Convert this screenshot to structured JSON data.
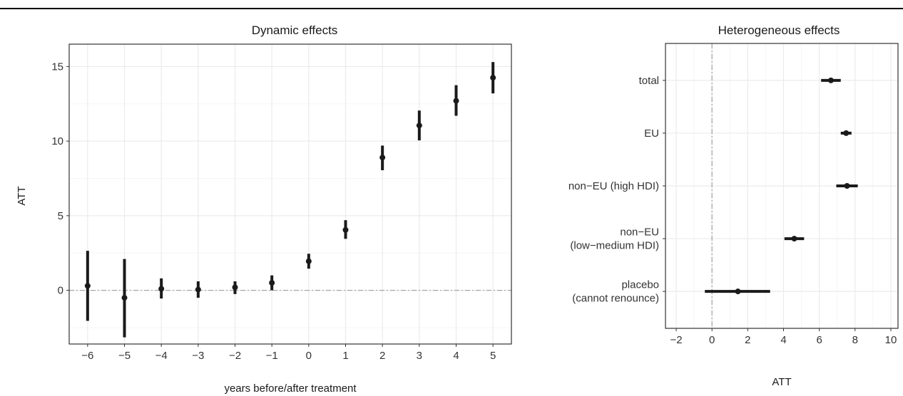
{
  "chart_data": [
    {
      "type": "scatter",
      "title": "Dynamic effects",
      "xlabel": "years before/after treatment",
      "ylabel": "ATT",
      "x": [
        -6,
        -5,
        -4,
        -3,
        -2,
        -1,
        0,
        1,
        2,
        3,
        4,
        5
      ],
      "x_tick_labels": [
        "−6",
        "−5",
        "−4",
        "−3",
        "−2",
        "−1",
        "0",
        "1",
        "2",
        "3",
        "4",
        "5"
      ],
      "xlim": [
        -6.5,
        5.5
      ],
      "ylim": [
        -3.6,
        16.5
      ],
      "y_ticks": [
        0,
        5,
        10,
        15
      ],
      "y_tick_labels": [
        "0",
        "5",
        "10",
        "15"
      ],
      "series": [
        {
          "values": [
            0.3,
            -0.5,
            0.1,
            0.05,
            0.2,
            0.5,
            1.95,
            4.05,
            8.9,
            11.05,
            12.7,
            14.25
          ],
          "ci_low": [
            -2.05,
            -3.15,
            -0.55,
            -0.5,
            -0.25,
            0.0,
            1.45,
            3.45,
            8.05,
            10.05,
            11.7,
            13.2
          ],
          "ci_high": [
            2.65,
            2.1,
            0.8,
            0.6,
            0.6,
            1.0,
            2.45,
            4.7,
            9.7,
            12.05,
            13.75,
            15.3
          ]
        }
      ],
      "reference_line": {
        "axis": "y",
        "value": 0,
        "style": "dash-dot",
        "color": "#a6a6a6"
      },
      "grid": true
    },
    {
      "type": "scatter",
      "orientation": "horizontal",
      "title": "Heterogeneous effects",
      "xlabel": "ATT",
      "ylabel": "",
      "categories": [
        [
          "total"
        ],
        [
          "EU"
        ],
        [
          "non−EU (high HDI)"
        ],
        [
          "non−EU",
          "(low−medium HDI)"
        ],
        [
          "placebo",
          "(cannot renounce)"
        ]
      ],
      "xlim": [
        -2.6,
        10.4
      ],
      "x_ticks": [
        -2,
        0,
        2,
        4,
        6,
        8,
        10
      ],
      "x_tick_labels": [
        "−2",
        "0",
        "2",
        "4",
        "6",
        "8",
        "10"
      ],
      "series": [
        {
          "values": [
            6.65,
            7.5,
            7.55,
            4.6,
            1.45
          ],
          "ci_low": [
            6.1,
            7.2,
            6.95,
            4.05,
            -0.4
          ],
          "ci_high": [
            7.2,
            7.8,
            8.15,
            5.15,
            3.25
          ]
        }
      ],
      "reference_line": {
        "axis": "x",
        "value": 0,
        "style": "dash-dot",
        "color": "#a6a6a6"
      },
      "grid": true
    }
  ],
  "colors": {
    "panel_background": "#ffffff",
    "panel_border": "#333333",
    "grid_major": "#ebebeb",
    "grid_minor": "#f5f5f5",
    "point": "#1a1a1a",
    "reference_line": "#a6a6a6"
  }
}
